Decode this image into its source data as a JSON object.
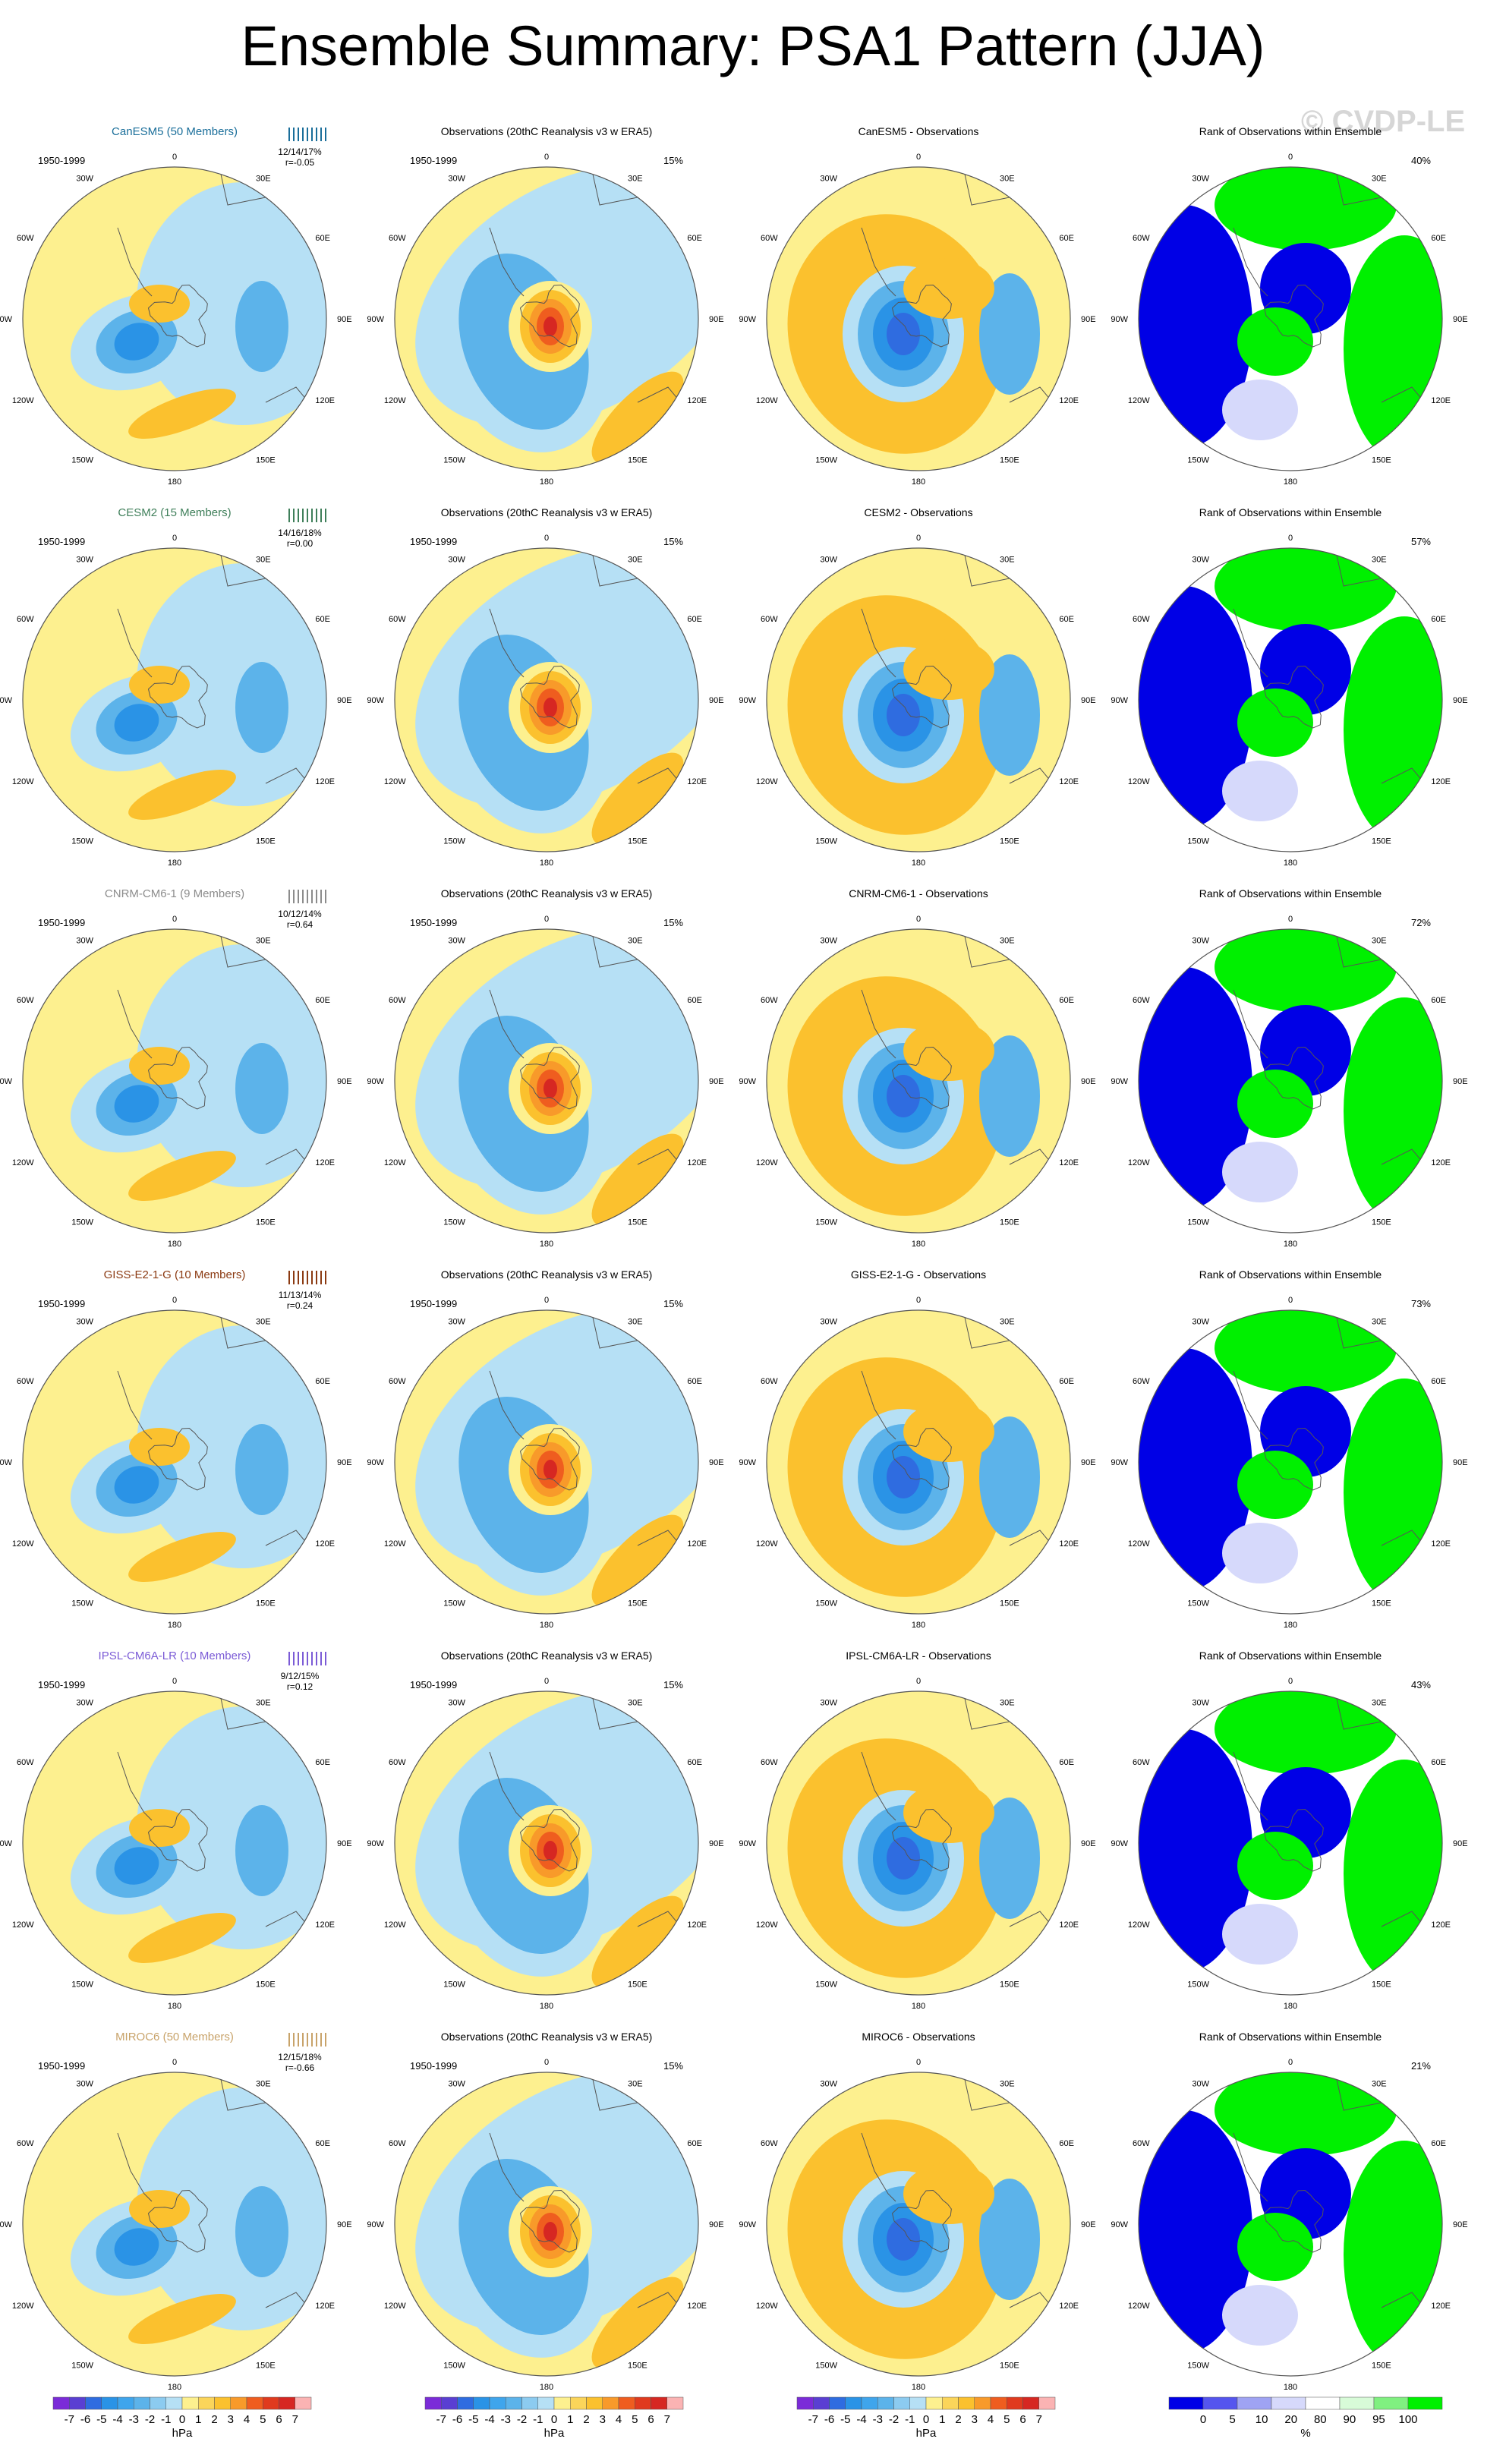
{
  "title": "Ensemble Summary: PSA1 Pattern (JJA)",
  "watermark": "© CVDP-LE",
  "period": "1950-1999",
  "obs_title": "Observations (20thC Reanalysis v3 w ERA5)",
  "obs_pct": "15%",
  "rank_title": "Rank of Observations within Ensemble",
  "diff_suffix": " - Observations",
  "lon_labels": [
    "0",
    "30E",
    "60E",
    "90E",
    "120E",
    "150E",
    "180",
    "150W",
    "120W",
    "90W",
    "60W",
    "30W"
  ],
  "colors": {
    "yellow": "#fdf08f",
    "lblue": "#b6e0f5",
    "orange1": "#fbc12e",
    "orange2": "#f89a2a",
    "orange3": "#ef5d1f",
    "red": "#d62722",
    "blue1": "#5cb3ea",
    "blue2": "#2a93e6",
    "blue3": "#2f6ce0",
    "purple": "#5a3fd2",
    "rank_blue": "#0000e6",
    "rank_lblue": "#d6d9fb",
    "rank_green": "#00f000",
    "rank_lgreen": "#d8fbd8"
  },
  "rows": [
    {
      "model": "CanESM5 (50 Members)",
      "model_color": "#1a6e9a",
      "short": "CanESM5",
      "stats": "12/14/17%",
      "r": "r=-0.05",
      "rank_pct": "40%"
    },
    {
      "model": "CESM2 (15 Members)",
      "model_color": "#3f7f5a",
      "short": "CESM2",
      "stats": "14/16/18%",
      "r": "r=0.00",
      "rank_pct": "57%"
    },
    {
      "model": "CNRM-CM6-1 (9 Members)",
      "model_color": "#8c8c8c",
      "short": "CNRM-CM6-1",
      "stats": "10/12/14%",
      "r": "r=0.64",
      "rank_pct": "72%"
    },
    {
      "model": "GISS-E2-1-G (10 Members)",
      "model_color": "#8b3a12",
      "short": "GISS-E2-1-G",
      "stats": "11/13/14%",
      "r": "r=0.24",
      "rank_pct": "73%"
    },
    {
      "model": "IPSL-CM6A-LR (10 Members)",
      "model_color": "#7b5bd6",
      "short": "IPSL-CM6A-LR",
      "stats": "9/12/15%",
      "r": "r=0.12",
      "rank_pct": "43%"
    },
    {
      "model": "MIROC6 (50 Members)",
      "model_color": "#c8a36a",
      "short": "MIROC6",
      "stats": "12/15/18%",
      "r": "r=-0.66",
      "rank_pct": "21%"
    }
  ],
  "colorbar_hpa": {
    "labels": [
      "-7",
      "-6",
      "-5",
      "-4",
      "-3",
      "-2",
      "-1",
      "0",
      "1",
      "2",
      "3",
      "4",
      "5",
      "6",
      "7"
    ],
    "colors": [
      "#7b2bd8",
      "#5a3fd2",
      "#2f6ce0",
      "#2a93e6",
      "#3fa5ec",
      "#5cb3ea",
      "#8ccbf0",
      "#b6e0f5",
      "#fdf08f",
      "#fbd55a",
      "#fbc12e",
      "#f89a2a",
      "#ef5d1f",
      "#e03a1e",
      "#d62722",
      "#fbb3b3"
    ],
    "unit": "hPa"
  },
  "colorbar_rank": {
    "labels": [
      "0",
      "5",
      "10",
      "20",
      "80",
      "90",
      "95",
      "100"
    ],
    "colors": [
      "#0000e6",
      "#5555ee",
      "#9fa3f3",
      "#d6d9fb",
      "#ffffff",
      "#d8fbd8",
      "#80f080",
      "#00f000"
    ],
    "unit": "%"
  }
}
